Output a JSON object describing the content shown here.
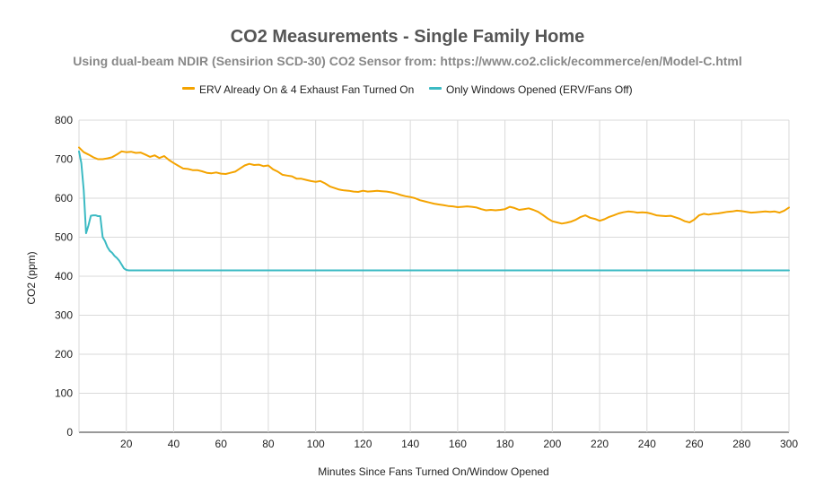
{
  "chart_data": {
    "type": "line",
    "title": "CO2 Measurements - Single Family Home",
    "subtitle": "Using dual-beam NDIR (Sensirion SCD-30) CO2 Sensor from: https://www.co2.click/ecommerce/en/Model-C.html",
    "xlabel": "Minutes Since Fans Turned On/Window Opened",
    "ylabel": "CO2 (ppm)",
    "xlim": [
      0,
      300
    ],
    "ylim": [
      0,
      800
    ],
    "xticks": [
      20,
      40,
      60,
      80,
      100,
      120,
      140,
      160,
      180,
      200,
      220,
      240,
      260,
      280,
      300
    ],
    "yticks": [
      0,
      100,
      200,
      300,
      400,
      500,
      600,
      700,
      800
    ],
    "grid": true,
    "legend_position": "top",
    "series": [
      {
        "name": "ERV Already On & 4 Exhaust Fan Turned On",
        "color": "#f4a300",
        "points": [
          [
            0,
            730
          ],
          [
            2,
            718
          ],
          [
            4,
            712
          ],
          [
            6,
            705
          ],
          [
            8,
            700
          ],
          [
            10,
            700
          ],
          [
            12,
            702
          ],
          [
            14,
            705
          ],
          [
            16,
            712
          ],
          [
            18,
            720
          ],
          [
            20,
            718
          ],
          [
            22,
            719
          ],
          [
            24,
            716
          ],
          [
            26,
            717
          ],
          [
            28,
            712
          ],
          [
            30,
            706
          ],
          [
            32,
            710
          ],
          [
            34,
            703
          ],
          [
            36,
            708
          ],
          [
            38,
            698
          ],
          [
            40,
            690
          ],
          [
            42,
            683
          ],
          [
            44,
            676
          ],
          [
            46,
            675
          ],
          [
            48,
            672
          ],
          [
            50,
            672
          ],
          [
            52,
            669
          ],
          [
            54,
            665
          ],
          [
            56,
            664
          ],
          [
            58,
            666
          ],
          [
            60,
            663
          ],
          [
            62,
            662
          ],
          [
            64,
            665
          ],
          [
            66,
            668
          ],
          [
            68,
            676
          ],
          [
            70,
            684
          ],
          [
            72,
            688
          ],
          [
            74,
            685
          ],
          [
            76,
            686
          ],
          [
            78,
            682
          ],
          [
            80,
            684
          ],
          [
            82,
            674
          ],
          [
            84,
            668
          ],
          [
            86,
            660
          ],
          [
            88,
            658
          ],
          [
            90,
            656
          ],
          [
            92,
            650
          ],
          [
            94,
            650
          ],
          [
            96,
            647
          ],
          [
            98,
            644
          ],
          [
            100,
            642
          ],
          [
            102,
            644
          ],
          [
            104,
            638
          ],
          [
            106,
            630
          ],
          [
            108,
            626
          ],
          [
            110,
            622
          ],
          [
            112,
            620
          ],
          [
            114,
            619
          ],
          [
            116,
            617
          ],
          [
            118,
            616
          ],
          [
            120,
            619
          ],
          [
            122,
            617
          ],
          [
            124,
            618
          ],
          [
            126,
            619
          ],
          [
            128,
            618
          ],
          [
            130,
            617
          ],
          [
            132,
            615
          ],
          [
            134,
            612
          ],
          [
            136,
            608
          ],
          [
            138,
            605
          ],
          [
            140,
            603
          ],
          [
            142,
            600
          ],
          [
            144,
            595
          ],
          [
            146,
            592
          ],
          [
            148,
            589
          ],
          [
            150,
            586
          ],
          [
            152,
            584
          ],
          [
            154,
            582
          ],
          [
            156,
            580
          ],
          [
            158,
            579
          ],
          [
            160,
            577
          ],
          [
            162,
            578
          ],
          [
            164,
            579
          ],
          [
            166,
            578
          ],
          [
            168,
            576
          ],
          [
            170,
            572
          ],
          [
            172,
            569
          ],
          [
            174,
            570
          ],
          [
            176,
            569
          ],
          [
            178,
            570
          ],
          [
            180,
            572
          ],
          [
            182,
            578
          ],
          [
            184,
            575
          ],
          [
            186,
            570
          ],
          [
            188,
            572
          ],
          [
            190,
            574
          ],
          [
            192,
            570
          ],
          [
            194,
            565
          ],
          [
            196,
            557
          ],
          [
            198,
            548
          ],
          [
            200,
            541
          ],
          [
            202,
            538
          ],
          [
            204,
            535
          ],
          [
            206,
            537
          ],
          [
            208,
            540
          ],
          [
            210,
            545
          ],
          [
            212,
            552
          ],
          [
            214,
            556
          ],
          [
            216,
            550
          ],
          [
            218,
            547
          ],
          [
            220,
            542
          ],
          [
            222,
            546
          ],
          [
            224,
            552
          ],
          [
            226,
            556
          ],
          [
            228,
            561
          ],
          [
            230,
            564
          ],
          [
            232,
            566
          ],
          [
            234,
            565
          ],
          [
            236,
            563
          ],
          [
            238,
            564
          ],
          [
            240,
            563
          ],
          [
            242,
            560
          ],
          [
            244,
            556
          ],
          [
            246,
            555
          ],
          [
            248,
            554
          ],
          [
            250,
            555
          ],
          [
            252,
            551
          ],
          [
            254,
            547
          ],
          [
            256,
            541
          ],
          [
            258,
            538
          ],
          [
            260,
            545
          ],
          [
            262,
            556
          ],
          [
            264,
            560
          ],
          [
            266,
            558
          ],
          [
            268,
            560
          ],
          [
            270,
            561
          ],
          [
            272,
            563
          ],
          [
            274,
            565
          ],
          [
            276,
            566
          ],
          [
            278,
            568
          ],
          [
            280,
            567
          ],
          [
            282,
            565
          ],
          [
            284,
            563
          ],
          [
            286,
            564
          ],
          [
            288,
            565
          ],
          [
            290,
            566
          ],
          [
            292,
            565
          ],
          [
            294,
            566
          ],
          [
            296,
            563
          ],
          [
            298,
            568
          ],
          [
            300,
            576
          ]
        ]
      },
      {
        "name": "Only Windows Opened (ERV/Fans Off)",
        "color": "#3bbac3",
        "points": [
          [
            0,
            720
          ],
          [
            1,
            690
          ],
          [
            2,
            620
          ],
          [
            3,
            510
          ],
          [
            4,
            530
          ],
          [
            5,
            555
          ],
          [
            6,
            556
          ],
          [
            7,
            556
          ],
          [
            8,
            554
          ],
          [
            9,
            554
          ],
          [
            10,
            500
          ],
          [
            11,
            490
          ],
          [
            12,
            475
          ],
          [
            13,
            465
          ],
          [
            14,
            460
          ],
          [
            15,
            452
          ],
          [
            16,
            447
          ],
          [
            17,
            440
          ],
          [
            18,
            430
          ],
          [
            19,
            420
          ],
          [
            20,
            416
          ],
          [
            21,
            415
          ],
          [
            25,
            415
          ],
          [
            300,
            415
          ]
        ]
      }
    ]
  }
}
